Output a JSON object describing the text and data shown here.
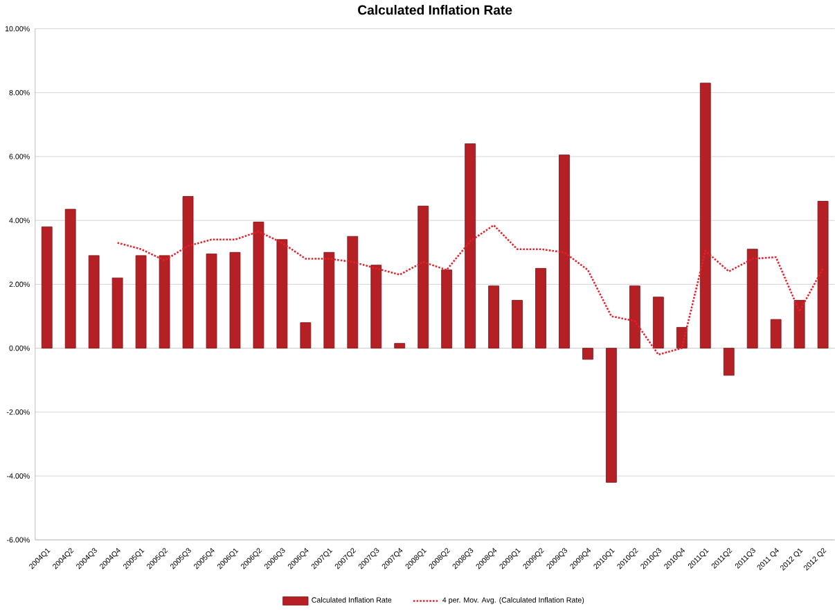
{
  "chart_data": {
    "type": "bar",
    "title": "Calculated Inflation Rate",
    "categories": [
      "2004Q1",
      "2004Q2",
      "2004Q3",
      "2004Q4",
      "2005Q1",
      "2005Q2",
      "2005Q3",
      "2005Q4",
      "2006Q1",
      "2006Q2",
      "2006Q3",
      "2006Q4",
      "2007Q1",
      "2007Q2",
      "2007Q3",
      "2007Q4",
      "2008Q1",
      "2008Q2",
      "2008Q3",
      "2008Q4",
      "2009Q1",
      "2009Q2",
      "2009Q3",
      "2009Q4",
      "2010Q1",
      "2010Q2",
      "2010Q3",
      "2010Q4",
      "2011Q1",
      "2011Q2",
      "2011Q3",
      "2011 Q4",
      "2012 Q1",
      "2012 Q2"
    ],
    "series": [
      {
        "name": "Calculated Inflation Rate",
        "color": "#b52025",
        "values": [
          3.8,
          4.35,
          2.9,
          2.2,
          2.9,
          2.9,
          4.75,
          2.95,
          3.0,
          3.95,
          3.4,
          0.8,
          3.0,
          3.5,
          2.6,
          0.15,
          4.45,
          2.45,
          6.4,
          1.95,
          1.5,
          2.5,
          6.05,
          -0.35,
          -4.2,
          1.95,
          1.6,
          0.65,
          8.3,
          -0.85,
          3.1,
          0.9,
          1.5,
          4.6
        ]
      },
      {
        "name": "4 per. Mov. Avg. (Calculated Inflation Rate)",
        "type": "line",
        "line_style": "dotted",
        "color": "#e8202a",
        "values": [
          null,
          null,
          null,
          3.3,
          3.1,
          2.75,
          3.2,
          3.4,
          3.4,
          3.65,
          3.3,
          2.8,
          2.8,
          2.7,
          2.5,
          2.3,
          2.7,
          2.45,
          3.35,
          3.85,
          3.1,
          3.1,
          3.0,
          2.45,
          1.0,
          0.85,
          -0.2,
          0.0,
          3.05,
          2.4,
          2.8,
          2.85,
          1.15,
          2.5
        ]
      }
    ],
    "ylim": [
      -6,
      10
    ],
    "yticks": [
      {
        "value": -6,
        "label": "-6.00%"
      },
      {
        "value": -4,
        "label": "-4.00%"
      },
      {
        "value": -2,
        "label": "-2.00%"
      },
      {
        "value": 0,
        "label": "0.00%"
      },
      {
        "value": 2,
        "label": "2.00%"
      },
      {
        "value": 4,
        "label": "4.00%"
      },
      {
        "value": 6,
        "label": "6.00%"
      },
      {
        "value": 8,
        "label": "8.00%"
      },
      {
        "value": 10,
        "label": "10.00%"
      }
    ],
    "grid": "y",
    "legend": "bottom"
  }
}
